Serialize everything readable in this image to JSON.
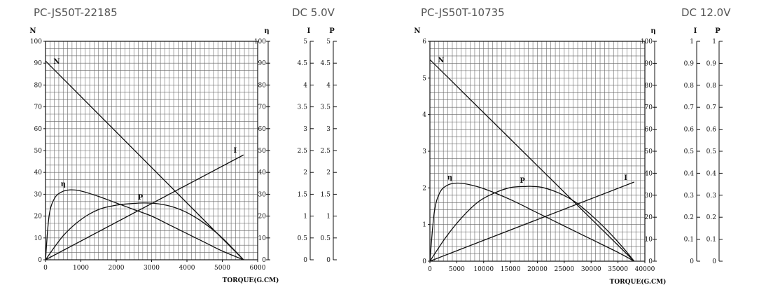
{
  "chart_data": [
    {
      "type": "line",
      "title": "PC-JS50T-22185",
      "subtitle": "DC 5.0V",
      "xlabel": "TORQUE(G.CM)",
      "xlim": [
        0,
        6000
      ],
      "x_ticks": [
        "0",
        "1000",
        "2000",
        "3000",
        "4000",
        "5000",
        "6000"
      ],
      "axes": [
        {
          "label": "N",
          "lim": [
            0,
            100
          ],
          "ticks": [
            "0",
            "10",
            "20",
            "30",
            "40",
            "50",
            "60",
            "70",
            "80",
            "90",
            "100"
          ]
        },
        {
          "label": "η",
          "lim": [
            0,
            100
          ],
          "ticks": [
            "0",
            "10",
            "20",
            "30",
            "40",
            "50",
            "60",
            "70",
            "80",
            "90",
            "100"
          ]
        },
        {
          "label": "I",
          "lim": [
            0,
            5
          ],
          "ticks": [
            "0",
            "0.5",
            "1",
            "1.5",
            "2",
            "2.5",
            "3",
            "3.5",
            "4",
            "4.5",
            "5"
          ]
        },
        {
          "label": "P",
          "lim": [
            0,
            5
          ],
          "ticks": [
            "0",
            "0.5",
            "1",
            "1.5",
            "2",
            "2.5",
            "3",
            "3.5",
            "4",
            "4.5",
            "5"
          ]
        }
      ],
      "series": [
        {
          "name": "N",
          "axis": 0,
          "x": [
            0,
            5600
          ],
          "y": [
            91,
            0
          ]
        },
        {
          "name": "I",
          "axis": 2,
          "x": [
            0,
            5600
          ],
          "y": [
            0,
            2.4
          ]
        },
        {
          "name": "η",
          "axis": 1,
          "x": [
            0,
            100,
            250,
            450,
            700,
            1000,
            1500,
            2000,
            2500,
            3000,
            3500,
            4000,
            4500,
            5000,
            5600
          ],
          "y": [
            0,
            20,
            28,
            31,
            32,
            31.5,
            29,
            26,
            23,
            20,
            16,
            12,
            8,
            4,
            0
          ]
        },
        {
          "name": "P",
          "axis": 3,
          "x": [
            0,
            500,
            1000,
            1500,
            2000,
            2500,
            2800,
            3200,
            3600,
            4000,
            4500,
            5000,
            5600
          ],
          "y": [
            0,
            0.55,
            0.92,
            1.15,
            1.25,
            1.29,
            1.3,
            1.28,
            1.21,
            1.08,
            0.83,
            0.5,
            0
          ]
        }
      ]
    },
    {
      "type": "line",
      "title": "PC-JS50T-10735",
      "subtitle": "DC 12.0V",
      "xlabel": "TORQUE(G.CM)",
      "xlim": [
        0,
        40000
      ],
      "x_ticks": [
        "0",
        "5000",
        "10000",
        "15000",
        "20000",
        "25000",
        "30000",
        "35000",
        "40000"
      ],
      "axes": [
        {
          "label": "N",
          "lim": [
            0,
            6
          ],
          "ticks": [
            "0",
            "1",
            "2",
            "3",
            "4",
            "5",
            "6"
          ]
        },
        {
          "label": "η",
          "lim": [
            0,
            100
          ],
          "ticks": [
            "0",
            "10",
            "20",
            "30",
            "40",
            "50",
            "60",
            "70",
            "80",
            "90",
            "100"
          ]
        },
        {
          "label": "I",
          "lim": [
            0,
            1
          ],
          "ticks": [
            "0",
            "0.1",
            "0.2",
            "0.3",
            "0.4",
            "0.5",
            "0.6",
            "0.7",
            "0.8",
            "0.9",
            "1"
          ]
        },
        {
          "label": "P",
          "lim": [
            0,
            1
          ],
          "ticks": [
            "0",
            "0.1",
            "0.2",
            "0.3",
            "0.4",
            "0.5",
            "0.6",
            "0.7",
            "0.8",
            "0.9",
            "1"
          ]
        }
      ],
      "series": [
        {
          "name": "N",
          "axis": 0,
          "x": [
            0,
            38000
          ],
          "y": [
            5.5,
            0
          ]
        },
        {
          "name": "I",
          "axis": 2,
          "x": [
            0,
            38000
          ],
          "y": [
            0,
            0.36
          ]
        },
        {
          "name": "η",
          "axis": 1,
          "x": [
            0,
            800,
            1800,
            3200,
            5000,
            7000,
            10000,
            15000,
            20000,
            25000,
            30000,
            35000,
            38000
          ],
          "y": [
            0,
            22,
            31,
            34.5,
            35.5,
            35,
            33,
            28,
            22,
            16,
            10,
            4,
            0
          ]
        },
        {
          "name": "P",
          "axis": 3,
          "x": [
            0,
            3000,
            6000,
            9000,
            12000,
            15000,
            18000,
            19000,
            21000,
            24000,
            27000,
            30000,
            33000,
            36000,
            38000
          ],
          "y": [
            0,
            0.11,
            0.2,
            0.27,
            0.31,
            0.335,
            0.34,
            0.34,
            0.335,
            0.31,
            0.27,
            0.21,
            0.14,
            0.06,
            0
          ]
        }
      ]
    }
  ]
}
